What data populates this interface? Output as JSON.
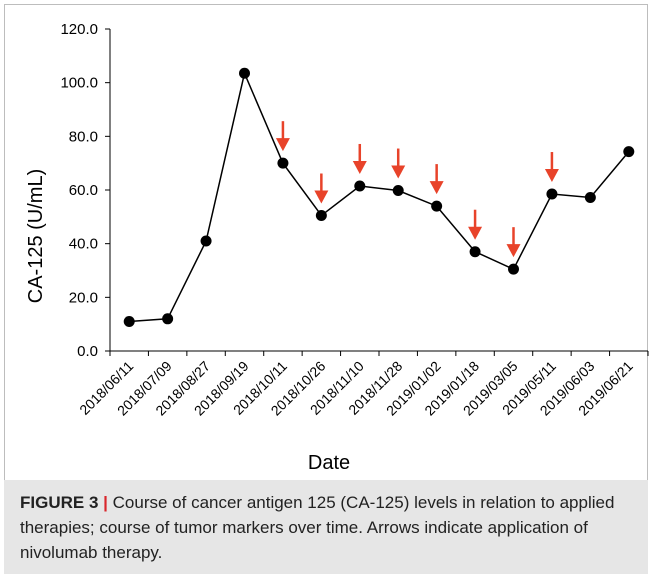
{
  "chart_data": {
    "type": "line",
    "title": "",
    "xlabel": "Date",
    "ylabel": "CA-125 (U/mL)",
    "ylim": [
      0,
      120
    ],
    "yticks": [
      "0.0",
      "20.0",
      "40.0",
      "60.0",
      "80.0",
      "100.0",
      "120.0"
    ],
    "grid": false,
    "categories": [
      "2018/06/11",
      "2018/07/09",
      "2018/08/27",
      "2018/09/19",
      "2018/10/11",
      "2018/10/26",
      "2018/11/10",
      "2018/11/28",
      "2019/01/02",
      "2019/01/18",
      "2019/03/05",
      "2019/05/11",
      "2019/06/03",
      "2019/06/21"
    ],
    "series": [
      {
        "values": [
          11.0,
          12.0,
          41.0,
          103.5,
          70.0,
          50.5,
          61.5,
          59.8,
          54.0,
          37.0,
          30.5,
          58.5,
          57.2,
          74.3
        ]
      }
    ],
    "arrows_at": [
      "2018/10/11",
      "2018/10/26",
      "2018/11/10",
      "2018/11/28",
      "2019/01/02",
      "2019/01/18",
      "2019/03/05",
      "2019/05/11"
    ],
    "colors": {
      "line": "#000000",
      "marker": "#000000",
      "arrow": "#e8432a"
    }
  },
  "caption": {
    "label": "FIGURE 3",
    "separator": "|",
    "text": "Course of cancer antigen 125 (CA-125) levels in relation to applied therapies; course of tumor markers over time. Arrows indicate application of nivolumab therapy."
  }
}
